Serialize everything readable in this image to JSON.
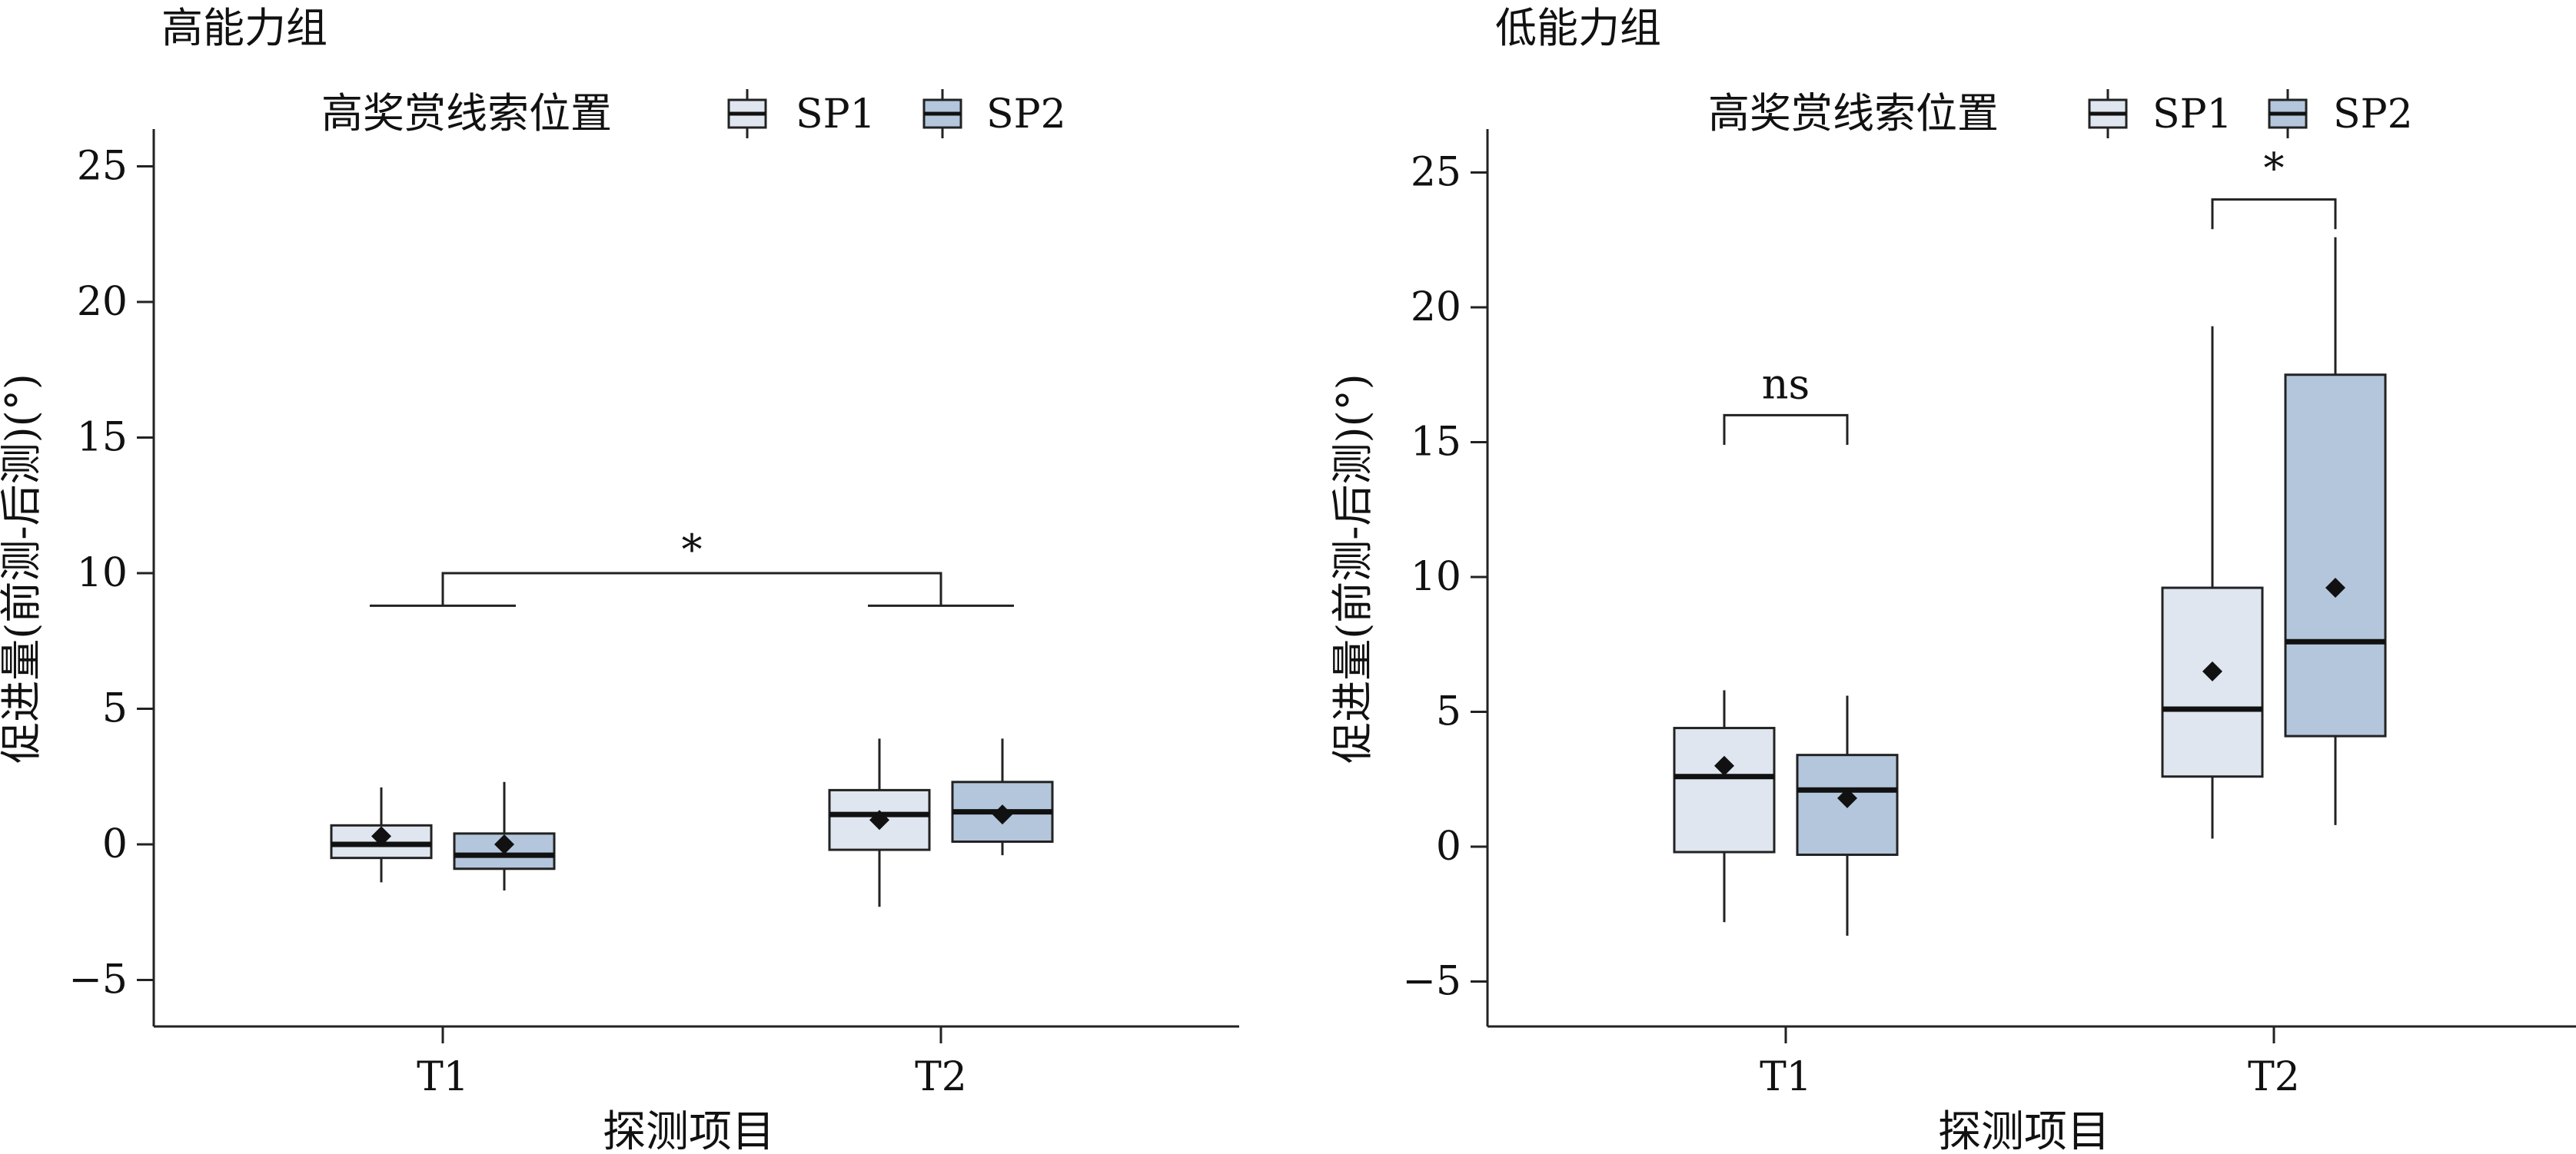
{
  "chart_data": [
    {
      "type": "box",
      "title": "高能力组",
      "xlabel": "探测项目",
      "ylabel": "促进量(前测-后测)(°)",
      "ylim": [
        -6.5,
        26.5
      ],
      "yticks": [
        -5,
        0,
        5,
        10,
        15,
        20,
        25
      ],
      "ytick_labels": [
        "−5",
        "0",
        "5",
        "10",
        "15",
        "20",
        "25"
      ],
      "categories": [
        "T1",
        "T2"
      ],
      "legend": {
        "title": "高奖赏线索位置",
        "position": "top",
        "entries": [
          "SP1",
          "SP2"
        ]
      },
      "series": [
        {
          "name": "SP1",
          "color": "#dfe6f0",
          "boxes": [
            {
              "category": "T1",
              "whisker_low": -1.4,
              "q1": -0.5,
              "median": 0.0,
              "q3": 0.7,
              "whisker_high": 2.1,
              "mean": 0.3
            },
            {
              "category": "T2",
              "whisker_low": -2.3,
              "q1": -0.2,
              "median": 1.1,
              "q3": 2.0,
              "whisker_high": 3.9,
              "mean": 0.9
            }
          ]
        },
        {
          "name": "SP2",
          "color": "#b4c6dc",
          "boxes": [
            {
              "category": "T1",
              "whisker_low": -1.7,
              "q1": -0.9,
              "median": -0.4,
              "q3": 0.4,
              "whisker_high": 2.3,
              "mean": 0.0
            },
            {
              "category": "T2",
              "whisker_low": -0.4,
              "q1": 0.1,
              "median": 1.2,
              "q3": 2.3,
              "whisker_high": 3.9,
              "mean": 1.1
            }
          ]
        }
      ],
      "annotations": [
        {
          "type": "group-bracket",
          "from": "T1",
          "to": "T2",
          "bracket_y": 10.0,
          "arm_y": 8.8,
          "label": "*"
        }
      ]
    },
    {
      "type": "box",
      "title": "低能力组",
      "xlabel": "探测项目",
      "ylabel": "促进量(前测-后测)(°)",
      "ylim": [
        -6.5,
        26.5
      ],
      "yticks": [
        -5,
        0,
        5,
        10,
        15,
        20,
        25
      ],
      "ytick_labels": [
        "−5",
        "0",
        "5",
        "10",
        "15",
        "20",
        "25"
      ],
      "categories": [
        "T1",
        "T2"
      ],
      "legend": {
        "title": "高奖赏线索位置",
        "position": "top",
        "entries": [
          "SP1",
          "SP2"
        ]
      },
      "series": [
        {
          "name": "SP1",
          "color": "#dfe6f0",
          "boxes": [
            {
              "category": "T1",
              "whisker_low": -2.8,
              "q1": -0.2,
              "median": 2.6,
              "q3": 4.4,
              "whisker_high": 5.8,
              "mean": 3.0
            },
            {
              "category": "T2",
              "whisker_low": 0.3,
              "q1": 2.6,
              "median": 5.1,
              "q3": 9.6,
              "whisker_high": 19.3,
              "mean": 6.5
            }
          ]
        },
        {
          "name": "SP2",
          "color": "#b4c6dc",
          "boxes": [
            {
              "category": "T1",
              "whisker_low": -3.3,
              "q1": -0.3,
              "median": 2.1,
              "q3": 3.4,
              "whisker_high": 5.6,
              "mean": 1.8
            },
            {
              "category": "T2",
              "whisker_low": 0.8,
              "q1": 4.1,
              "median": 7.6,
              "q3": 17.5,
              "whisker_high": 22.6,
              "mean": 9.6
            }
          ]
        }
      ],
      "annotations": [
        {
          "type": "pair-bracket",
          "category": "T1",
          "bracket_y": 16.0,
          "arm_y": 14.9,
          "label": "ns"
        },
        {
          "type": "pair-bracket",
          "category": "T2",
          "bracket_y": 24.0,
          "arm_y": 22.9,
          "label": "*"
        }
      ]
    }
  ]
}
